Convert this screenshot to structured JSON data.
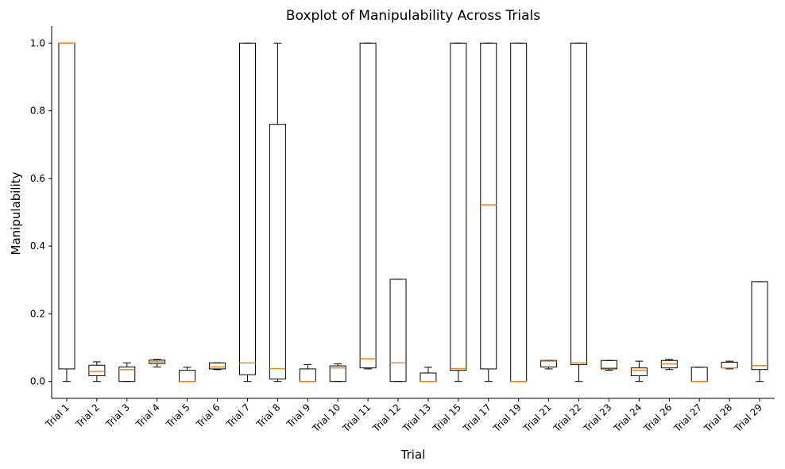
{
  "chart_data": {
    "type": "boxplot",
    "title": "Boxplot of Manipulability Across Trials",
    "xlabel": "Trial",
    "ylabel": "Manipulability",
    "ylim": [
      -0.05,
      1.05
    ],
    "yticks": [
      "0.0",
      "0.2",
      "0.4",
      "0.6",
      "0.8",
      "1.0"
    ],
    "grid": false,
    "colors": {
      "box": "#000000",
      "median": "#ff7f0e"
    },
    "categories": [
      "Trial 1",
      "Trial 2",
      "Trial 3",
      "Trial 4",
      "Trial 5",
      "Trial 6",
      "Trial 7",
      "Trial 8",
      "Trial 9",
      "Trial 10",
      "Trial 11",
      "Trial 12",
      "Trial 13",
      "Trial 15",
      "Trial 17",
      "Trial 19",
      "Trial 21",
      "Trial 22",
      "Trial 23",
      "Trial 24",
      "Trial 26",
      "Trial 27",
      "Trial 28",
      "Trial 29"
    ],
    "boxes": [
      {
        "whislo": 0.0,
        "q1": 0.037,
        "median": 1.0,
        "q3": 1.0,
        "whishi": 1.0
      },
      {
        "whislo": 0.0,
        "q1": 0.017,
        "median": 0.03,
        "q3": 0.048,
        "whishi": 0.058
      },
      {
        "whislo": 0.0,
        "q1": 0.0,
        "median": 0.035,
        "q3": 0.043,
        "whishi": 0.055
      },
      {
        "whislo": 0.043,
        "q1": 0.053,
        "median": 0.058,
        "q3": 0.063,
        "whishi": 0.065
      },
      {
        "whislo": 0.0,
        "q1": 0.0,
        "median": 0.0,
        "q3": 0.033,
        "whishi": 0.042
      },
      {
        "whislo": 0.035,
        "q1": 0.037,
        "median": 0.043,
        "q3": 0.055,
        "whishi": 0.055
      },
      {
        "whislo": 0.0,
        "q1": 0.02,
        "median": 0.055,
        "q3": 1.0,
        "whishi": 1.0
      },
      {
        "whislo": 0.0,
        "q1": 0.007,
        "median": 0.038,
        "q3": 0.76,
        "whishi": 1.0
      },
      {
        "whislo": 0.0,
        "q1": 0.0,
        "median": 0.0,
        "q3": 0.037,
        "whishi": 0.05
      },
      {
        "whislo": 0.0,
        "q1": 0.0,
        "median": 0.04,
        "q3": 0.046,
        "whishi": 0.052
      },
      {
        "whislo": 0.037,
        "q1": 0.04,
        "median": 0.067,
        "q3": 1.0,
        "whishi": 1.0
      },
      {
        "whislo": 0.0,
        "q1": 0.0,
        "median": 0.055,
        "q3": 0.302,
        "whishi": 0.302
      },
      {
        "whislo": 0.0,
        "q1": 0.0,
        "median": 0.0,
        "q3": 0.025,
        "whishi": 0.042
      },
      {
        "whislo": 0.0,
        "q1": 0.033,
        "median": 0.038,
        "q3": 1.0,
        "whishi": 1.0
      },
      {
        "whislo": 0.0,
        "q1": 0.037,
        "median": 0.522,
        "q3": 1.0,
        "whishi": 1.0
      },
      {
        "whislo": 0.0,
        "q1": 0.0,
        "median": 0.0,
        "q3": 1.0,
        "whishi": 1.0
      },
      {
        "whislo": 0.037,
        "q1": 0.043,
        "median": 0.06,
        "q3": 0.062,
        "whishi": 0.062
      },
      {
        "whislo": 0.0,
        "q1": 0.05,
        "median": 0.055,
        "q3": 1.0,
        "whishi": 1.0
      },
      {
        "whislo": 0.033,
        "q1": 0.037,
        "median": 0.04,
        "q3": 0.062,
        "whishi": 0.062
      },
      {
        "whislo": 0.0,
        "q1": 0.017,
        "median": 0.033,
        "q3": 0.04,
        "whishi": 0.06
      },
      {
        "whislo": 0.035,
        "q1": 0.04,
        "median": 0.052,
        "q3": 0.062,
        "whishi": 0.065
      },
      {
        "whislo": 0.0,
        "q1": 0.0,
        "median": 0.0,
        "q3": 0.042,
        "whishi": 0.042
      },
      {
        "whislo": 0.037,
        "q1": 0.04,
        "median": 0.04,
        "q3": 0.057,
        "whishi": 0.06
      },
      {
        "whislo": 0.0,
        "q1": 0.035,
        "median": 0.047,
        "q3": 0.295,
        "whishi": 0.295
      }
    ]
  }
}
